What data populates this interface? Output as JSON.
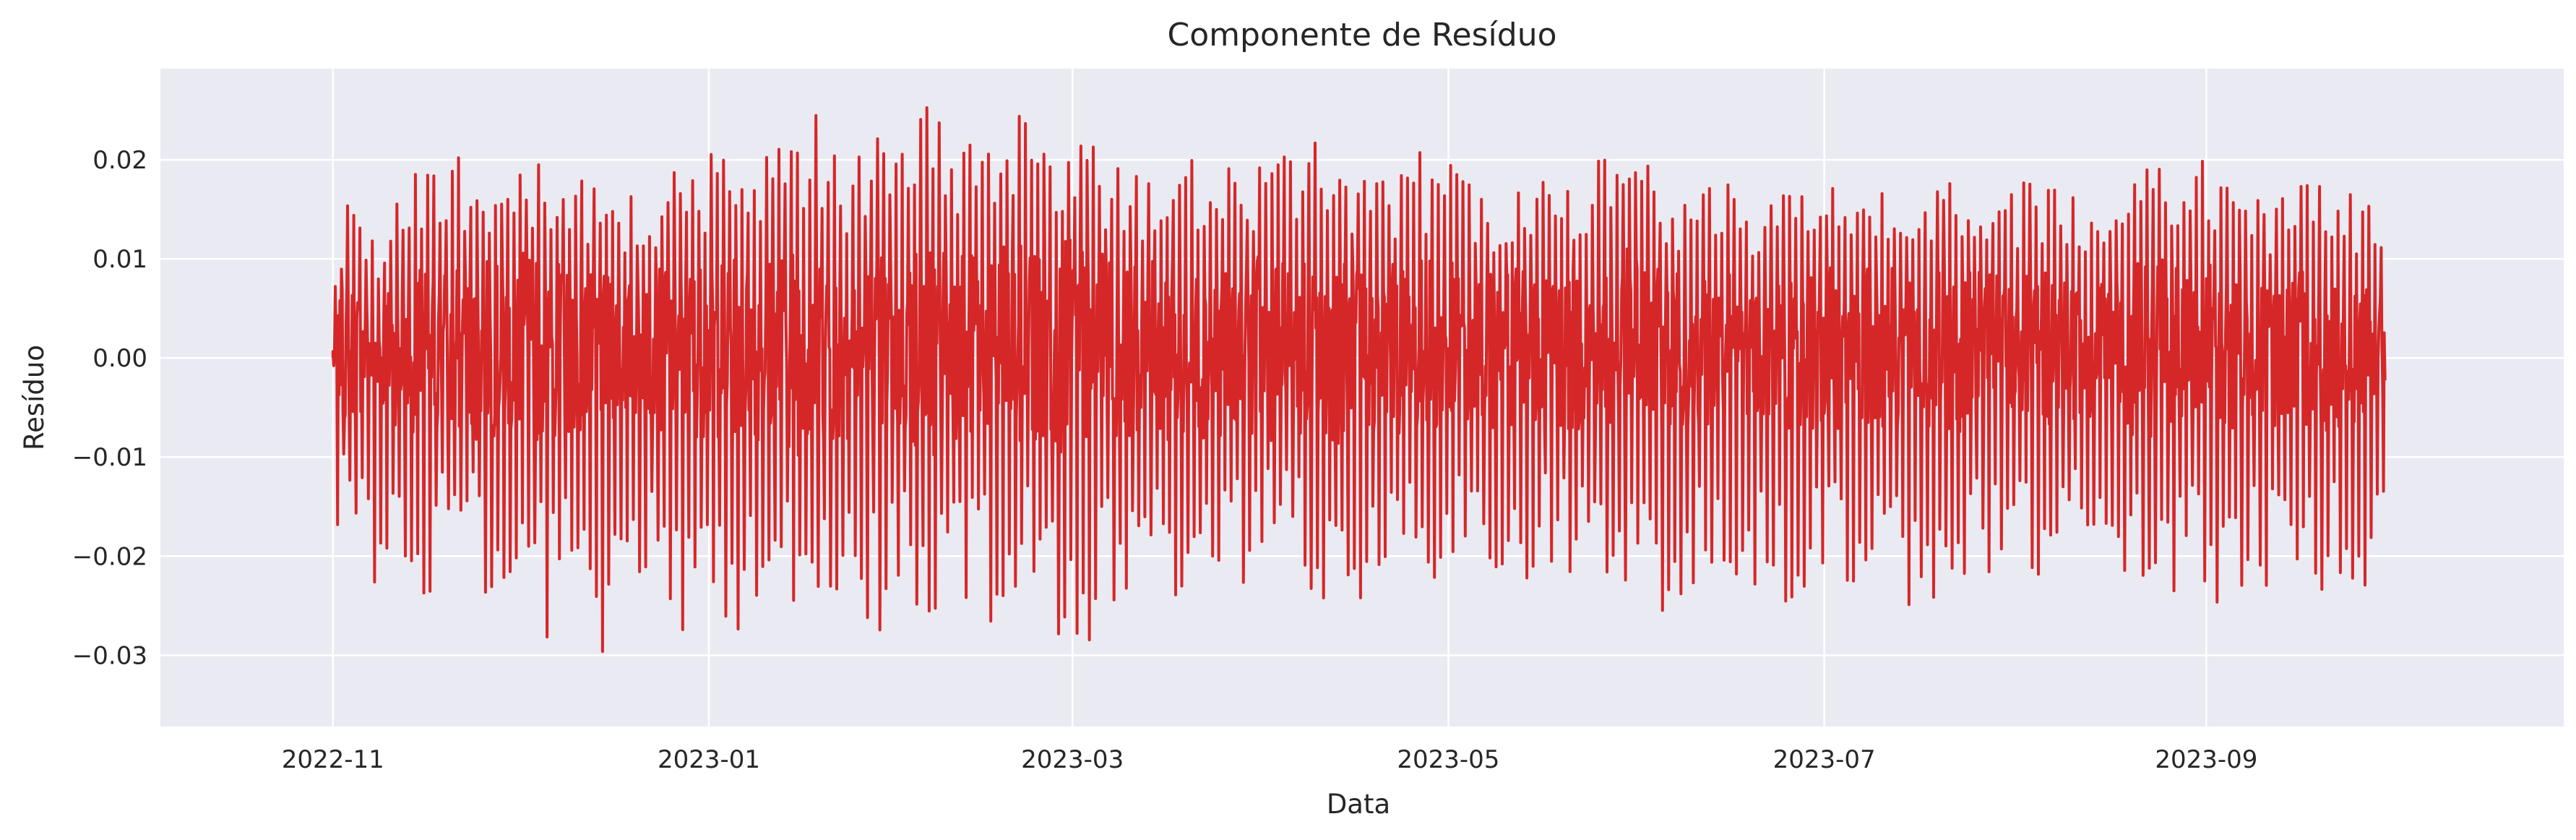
{
  "chart_data": {
    "type": "line",
    "title": "Componente de Resíduo",
    "xlabel": "Data",
    "ylabel": "Resíduo",
    "x_range": [
      "2022-10-04",
      "2023-10-29"
    ],
    "data_x_range": [
      "2022-11-01",
      "2023-09-30"
    ],
    "ylim": [
      -0.0372,
      0.0292
    ],
    "x_ticks": [
      {
        "value": "2022-11-01",
        "label": "2022-11"
      },
      {
        "value": "2023-01-01",
        "label": "2023-01"
      },
      {
        "value": "2023-03-01",
        "label": "2023-03"
      },
      {
        "value": "2023-05-01",
        "label": "2023-05"
      },
      {
        "value": "2023-07-01",
        "label": "2023-07"
      },
      {
        "value": "2023-09-01",
        "label": "2023-09"
      }
    ],
    "y_ticks": [
      {
        "value": 0.02,
        "label": "0.02"
      },
      {
        "value": 0.01,
        "label": "0.01"
      },
      {
        "value": 0.0,
        "label": "0.00"
      },
      {
        "value": -0.01,
        "label": "−0.01"
      },
      {
        "value": -0.02,
        "label": "−0.02"
      },
      {
        "value": -0.03,
        "label": "−0.03"
      }
    ],
    "grid": true,
    "series": [
      {
        "color": "#d62728",
        "x": [
          "2022-11-01",
          "2022-11-03",
          "2022-11-05",
          "2022-11-08",
          "2022-11-12",
          "2022-11-16",
          "2022-11-20",
          "2022-11-24",
          "2022-11-28",
          "2022-12-02",
          "2022-12-06",
          "2022-12-10",
          "2022-12-14",
          "2022-12-18",
          "2022-12-23",
          "2022-12-27",
          "2022-12-31",
          "2023-01-02",
          "2023-01-06",
          "2023-01-10",
          "2023-01-14",
          "2023-01-19",
          "2023-01-24",
          "2023-01-28",
          "2023-02-01",
          "2023-02-05",
          "2023-02-09",
          "2023-02-13",
          "2023-02-18",
          "2023-02-23",
          "2023-02-27",
          "2023-03-03",
          "2023-03-07",
          "2023-03-12",
          "2023-03-17",
          "2023-03-22",
          "2023-03-27",
          "2023-04-01",
          "2023-04-06",
          "2023-04-11",
          "2023-04-16",
          "2023-04-21",
          "2023-04-26",
          "2023-05-01",
          "2023-05-06",
          "2023-05-11",
          "2023-05-16",
          "2023-05-21",
          "2023-05-26",
          "2023-05-31",
          "2023-06-05",
          "2023-06-10",
          "2023-06-15",
          "2023-06-20",
          "2023-06-25",
          "2023-06-30",
          "2023-07-05",
          "2023-07-10",
          "2023-07-15",
          "2023-07-20",
          "2023-07-25",
          "2023-07-30",
          "2023-08-04",
          "2023-08-09",
          "2023-08-14",
          "2023-08-19",
          "2023-08-23",
          "2023-08-27",
          "2023-08-31",
          "2023-09-04",
          "2023-09-08",
          "2023-09-12",
          "2023-09-16",
          "2023-09-20",
          "2023-09-24",
          "2023-09-27",
          "2023-09-30"
        ],
        "y_high": [
          0.005,
          0.017,
          0.015,
          0.012,
          0.018,
          0.019,
          0.02,
          0.021,
          0.019,
          0.022,
          0.02,
          0.019,
          0.017,
          0.016,
          0.018,
          0.019,
          0.02,
          0.021,
          0.02,
          0.021,
          0.024,
          0.025,
          0.02,
          0.023,
          0.021,
          0.026,
          0.025,
          0.022,
          0.023,
          0.026,
          0.024,
          0.025,
          0.02,
          0.019,
          0.021,
          0.02,
          0.019,
          0.021,
          0.02,
          0.023,
          0.02,
          0.019,
          0.021,
          0.02,
          0.017,
          0.018,
          0.019,
          0.018,
          0.021,
          0.023,
          0.018,
          0.017,
          0.018,
          0.017,
          0.018,
          0.019,
          0.018,
          0.019,
          0.018,
          0.019,
          0.018,
          0.017,
          0.018,
          0.017,
          0.016,
          0.019,
          0.02,
          0.021,
          0.02,
          0.019,
          0.016,
          0.017,
          0.018,
          0.019,
          0.017,
          0.016,
          0.012
        ],
        "y_low": [
          -0.021,
          -0.013,
          -0.019,
          -0.027,
          -0.02,
          -0.027,
          -0.016,
          -0.022,
          -0.03,
          -0.018,
          -0.03,
          -0.022,
          -0.031,
          -0.024,
          -0.027,
          -0.03,
          -0.026,
          -0.034,
          -0.028,
          -0.032,
          -0.027,
          -0.03,
          -0.026,
          -0.029,
          -0.024,
          -0.027,
          -0.03,
          -0.025,
          -0.028,
          -0.024,
          -0.03,
          -0.031,
          -0.027,
          -0.022,
          -0.027,
          -0.023,
          -0.024,
          -0.021,
          -0.023,
          -0.025,
          -0.026,
          -0.025,
          -0.024,
          -0.024,
          -0.021,
          -0.025,
          -0.023,
          -0.022,
          -0.024,
          -0.022,
          -0.028,
          -0.024,
          -0.021,
          -0.025,
          -0.027,
          -0.022,
          -0.027,
          -0.023,
          -0.025,
          -0.024,
          -0.022,
          -0.023,
          -0.022,
          -0.021,
          -0.024,
          -0.026,
          -0.025,
          -0.024,
          -0.025,
          -0.026,
          -0.024,
          -0.025,
          -0.026,
          -0.025,
          -0.023,
          -0.025,
          -0.019
        ]
      }
    ]
  }
}
